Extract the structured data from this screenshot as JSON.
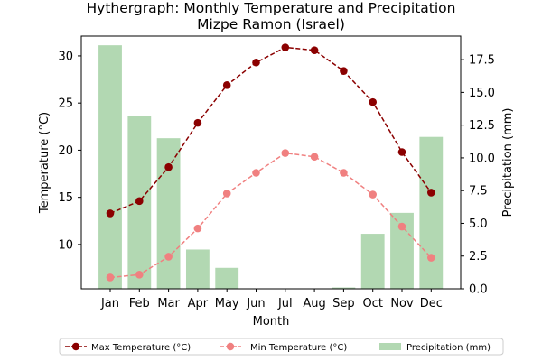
{
  "chart_data": {
    "type": "bar+line",
    "title": "Hythergraph: Monthly Temperature and Precipitation",
    "subtitle": "Mizpe Ramon (Israel)",
    "xlabel": "Month",
    "ylabel_left": "Temperature (°C)",
    "ylabel_right": "Precipitation (mm)",
    "categories": [
      "Jan",
      "Feb",
      "Mar",
      "Apr",
      "May",
      "Jun",
      "Jul",
      "Aug",
      "Sep",
      "Oct",
      "Nov",
      "Dec"
    ],
    "ylim_left": [
      5.3,
      32.1
    ],
    "ylim_right": [
      0,
      19.3
    ],
    "yticks_left": [
      "10",
      "15",
      "20",
      "25",
      "30"
    ],
    "yticks_right": [
      "0.0",
      "2.5",
      "5.0",
      "7.5",
      "10.0",
      "12.5",
      "15.0",
      "17.5"
    ],
    "series": [
      {
        "name": "Max Temperature (°C)",
        "type": "line",
        "axis": "left",
        "color": "#8b0000",
        "values": [
          13.3,
          14.6,
          18.2,
          22.9,
          26.9,
          29.3,
          30.9,
          30.6,
          28.4,
          25.1,
          19.8,
          15.5
        ]
      },
      {
        "name": "Min Temperature (°C)",
        "type": "line",
        "axis": "left",
        "color": "#f08080",
        "values": [
          6.5,
          6.8,
          8.7,
          11.7,
          15.4,
          17.6,
          19.7,
          19.3,
          17.6,
          15.3,
          11.9,
          8.6
        ]
      },
      {
        "name": "Precipitation (mm)",
        "type": "bar",
        "axis": "right",
        "color": "#b2d8b2",
        "values": [
          18.6,
          13.2,
          11.5,
          3.0,
          1.6,
          0,
          0,
          0,
          0.1,
          4.2,
          5.8,
          11.6
        ]
      }
    ],
    "legend_position": "bottom",
    "grid": false
  },
  "colors": {
    "temp_axis": "#e00000",
    "precip_axis": "#008000"
  }
}
